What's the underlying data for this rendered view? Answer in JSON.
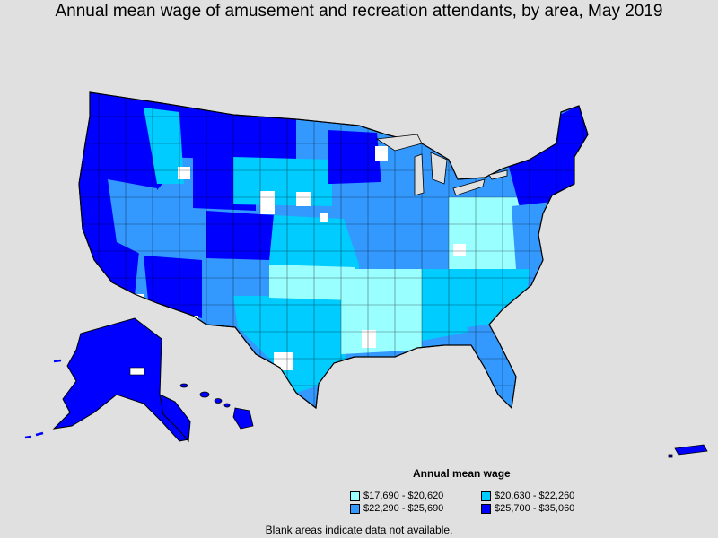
{
  "title": "Annual mean wage of amusement and recreation attendants, by area, May 2019",
  "legend": {
    "title": "Annual mean wage",
    "items": [
      {
        "label": "$17,690 - $20,620",
        "color": "#99ffff"
      },
      {
        "label": "$20,630 - $22,260",
        "color": "#00ccff"
      },
      {
        "label": "$22,290 - $25,690",
        "color": "#3399ff"
      },
      {
        "label": "$25,700 - $35,060",
        "color": "#0000ff"
      }
    ]
  },
  "footnote": "Blank areas indicate data not available.",
  "colors": {
    "background": "#e0e0e0",
    "no_data": "#ffffff",
    "border": "#000000"
  }
}
